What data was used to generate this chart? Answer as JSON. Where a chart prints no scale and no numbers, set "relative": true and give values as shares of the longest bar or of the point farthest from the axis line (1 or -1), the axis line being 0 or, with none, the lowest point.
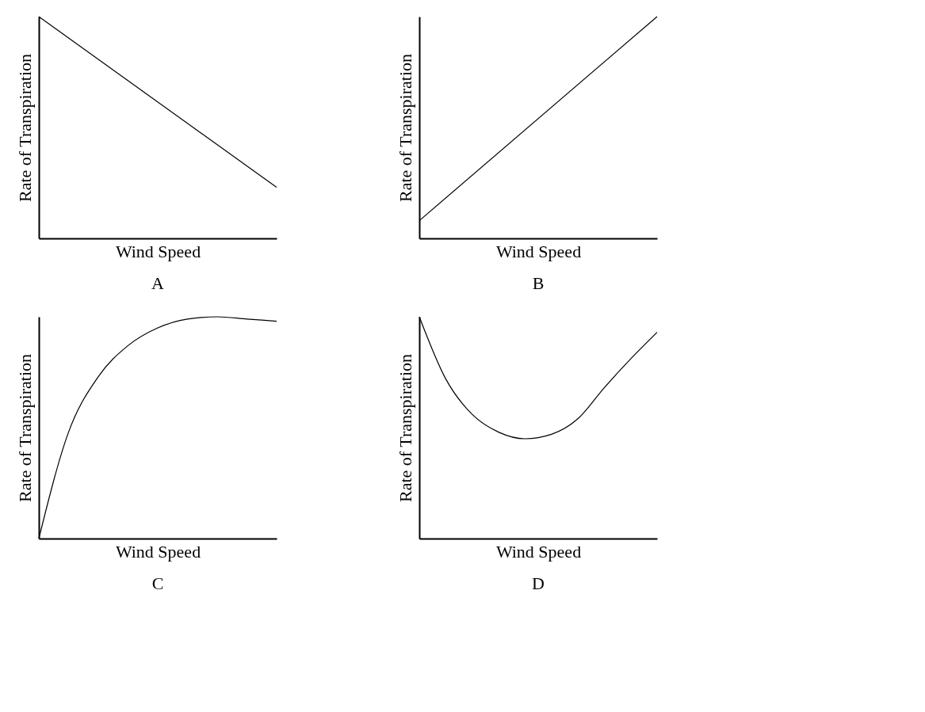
{
  "chart_data": [
    {
      "type": "line",
      "title": "A",
      "xlabel": "Wind Speed",
      "ylabel": "Rate of Transpiration",
      "relative": true,
      "categories": [
        null,
        null
      ],
      "series": [
        {
          "color": "#000000",
          "values": [
            1,
            0.23
          ]
        }
      ]
    },
    {
      "type": "line",
      "title": "B",
      "xlabel": "Wind Speed",
      "ylabel": "Rate of Transpiration",
      "relative": true,
      "categories": [
        null,
        null
      ],
      "series": [
        {
          "color": "#000000",
          "values": [
            0.08,
            1
          ]
        }
      ]
    },
    {
      "type": "line",
      "title": "C",
      "xlabel": "Wind Speed",
      "ylabel": "Rate of Transpiration",
      "relative": true,
      "categories": [
        null,
        null,
        null,
        null,
        null,
        null,
        null,
        null,
        null
      ],
      "series": [
        {
          "color": "#000000",
          "values": [
            0,
            0.48,
            0.73,
            0.87,
            0.95,
            0.99,
            1,
            0.99,
            0.98
          ]
        }
      ]
    },
    {
      "type": "line",
      "title": "D",
      "xlabel": "Wind Speed",
      "ylabel": "Rate of Transpiration",
      "relative": true,
      "categories": [
        null,
        null,
        null,
        null,
        null,
        null,
        null,
        null,
        null,
        null
      ],
      "series": [
        {
          "color": "#000000",
          "values": [
            1,
            0.72,
            0.56,
            0.48,
            0.45,
            0.47,
            0.54,
            0.68,
            0.81,
            0.93
          ]
        }
      ]
    }
  ]
}
